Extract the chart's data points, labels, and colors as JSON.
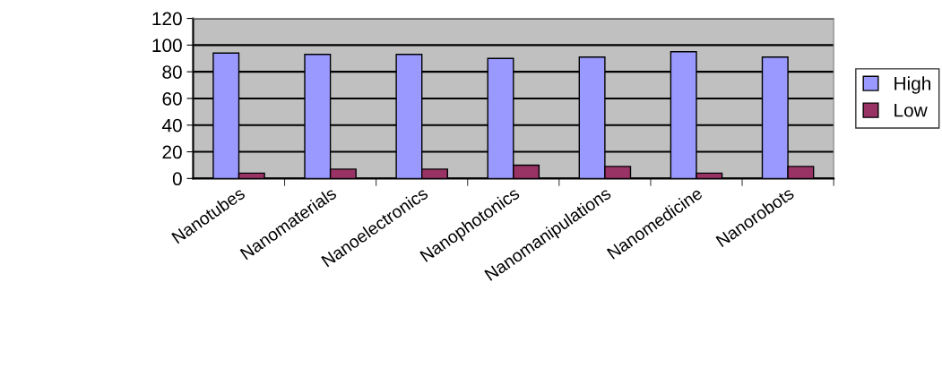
{
  "chart_data": {
    "type": "bar",
    "categories": [
      "Nanotubes",
      "Nanomaterials",
      "Nanoelectronics",
      "Nanophotonics",
      "Nanomanipulations",
      "Nanomedicine",
      "Nanorobots"
    ],
    "series": [
      {
        "name": "High",
        "color": "#9999ff",
        "values": [
          94,
          93,
          93,
          90,
          91,
          95,
          91
        ]
      },
      {
        "name": "Low",
        "color": "#993366",
        "values": [
          4,
          7,
          7,
          10,
          9,
          4,
          9
        ]
      }
    ],
    "ylim": [
      0,
      120
    ],
    "yticks": [
      0,
      20,
      40,
      60,
      80,
      100,
      120
    ],
    "grid": "y",
    "legend": "right"
  }
}
